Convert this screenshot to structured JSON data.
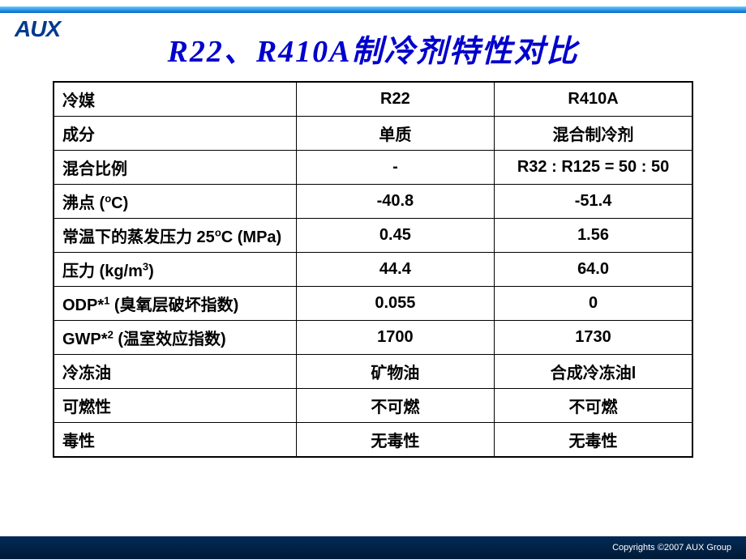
{
  "logo": "AUX",
  "title": "R22、R410A制冷剂特性对比",
  "table": {
    "columns": [
      "冷媒",
      "R22",
      "R410A"
    ],
    "rows": [
      {
        "prop": "成分",
        "r22": "单质",
        "r410a": "混合制冷剂"
      },
      {
        "prop": "混合比例",
        "r22": "-",
        "r410a": "R32 : R125 = 50 : 50"
      },
      {
        "prop_html": "沸点 (<sup>o</sup>C)",
        "r22": "-40.8",
        "r410a": "-51.4"
      },
      {
        "prop_html": "常温下的蒸发压力 25<sup>o</sup>C (MPa)",
        "r22": "0.45",
        "r410a": "1.56"
      },
      {
        "prop_html": "压力 (kg/m<sup>3</sup>)",
        "r22": "44.4",
        "r410a": "64.0"
      },
      {
        "prop_html": "ODP*<sup>1</sup> (臭氧层破坏指数)",
        "r22": "0.055",
        "r410a": "0"
      },
      {
        "prop_html": "GWP*<sup>2</sup> (温室效应指数)",
        "r22": "1700",
        "r410a": "1730"
      },
      {
        "prop": "冷冻油",
        "r22": "矿物油",
        "r410a": "合成冷冻油l"
      },
      {
        "prop": "可燃性",
        "r22": "不可燃",
        "r410a": "不可燃"
      },
      {
        "prop": "毒性",
        "r22": "无毒性",
        "r410a": "无毒性"
      }
    ],
    "border_color": "#000000",
    "background_color": "#ffffff",
    "header_fontsize": 20,
    "cell_fontsize": 20
  },
  "footer": "Copyrights ©2007  AUX Group",
  "colors": {
    "title_color": "#0000cc",
    "logo_color": "#003a8c",
    "stripe_top": "#66ccff",
    "stripe_bottom": "#0066cc",
    "footer_bg_top": "#022a55",
    "footer_bg_bottom": "#011a38",
    "page_bg": "#ffffff"
  }
}
